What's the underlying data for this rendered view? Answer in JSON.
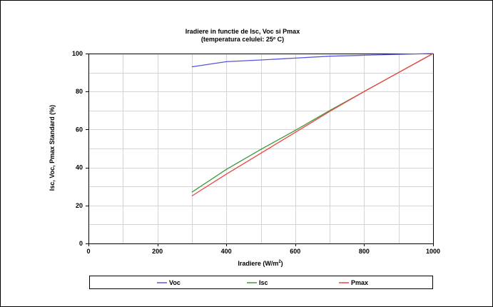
{
  "chart_data": {
    "type": "line",
    "title": "Iradiere in functie de Isc, Voc si Pmax",
    "subtitle": "(temperatura celulei: 25º C)",
    "xlabel": "Iradiere (W/m",
    "xlabel_superscript": "2",
    "xlabel_suffix": ")",
    "ylabel": "Isc, Voc, Pmax Standard (%)",
    "xlim": [
      0,
      1000
    ],
    "ylim": [
      0,
      100
    ],
    "x_ticks": [
      0,
      200,
      400,
      600,
      800,
      1000
    ],
    "y_ticks": [
      0,
      20,
      40,
      60,
      80,
      100
    ],
    "x_tick_labels": [
      "0",
      "200",
      "400",
      "600",
      "800",
      "1000"
    ],
    "y_tick_labels": [
      "0",
      "20",
      "40",
      "60",
      "80",
      "100"
    ],
    "grid": true,
    "legend_position": "bottom",
    "series": [
      {
        "name": "Voc",
        "color": "#5555dd",
        "x": [
          300,
          400,
          500,
          600,
          700,
          800,
          900,
          1000
        ],
        "y": [
          93,
          95.7,
          96.6,
          97.6,
          98.6,
          99.1,
          99.6,
          100
        ]
      },
      {
        "name": "Isc",
        "color": "#3a9a3a",
        "x": [
          300,
          400,
          500,
          600,
          700,
          800,
          900,
          1000
        ],
        "y": [
          27,
          39,
          49.5,
          59.5,
          70,
          80,
          90,
          100
        ]
      },
      {
        "name": "Pmax",
        "color": "#ee4444",
        "x": [
          300,
          400,
          500,
          600,
          700,
          800,
          900,
          1000
        ],
        "y": [
          25,
          36.5,
          47.5,
          58.5,
          69.5,
          80,
          90,
          100
        ]
      }
    ]
  }
}
